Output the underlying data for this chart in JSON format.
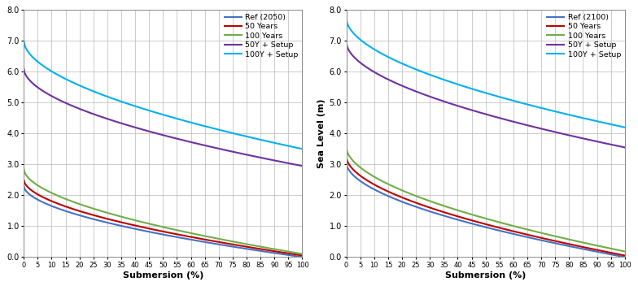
{
  "plots": [
    {
      "ylabel": "",
      "legend_ref_label": "Ref (2050)",
      "curves": {
        "ref": {
          "start": 2.3,
          "end": 0.0,
          "color": "#4472c4",
          "label": "Ref (2050)"
        },
        "50y": {
          "start": 2.5,
          "end": 0.05,
          "color": "#c00000",
          "label": "50 Years"
        },
        "100y": {
          "start": 2.85,
          "end": 0.1,
          "color": "#70ad47",
          "label": "100 Years"
        },
        "50yS": {
          "start": 6.1,
          "end": 2.95,
          "color": "#7030a0",
          "label": "50Y + Setup"
        },
        "100yS": {
          "start": 7.0,
          "end": 3.5,
          "color": "#00b0f0",
          "label": "100Y + Setup"
        }
      }
    },
    {
      "ylabel": "Sea Level (m)",
      "legend_ref_label": "Ref (2100)",
      "curves": {
        "ref": {
          "start": 3.05,
          "end": 0.0,
          "color": "#4472c4",
          "label": "Ref (2100)"
        },
        "50y": {
          "start": 3.25,
          "end": 0.05,
          "color": "#c00000",
          "label": "50 Years"
        },
        "100y": {
          "start": 3.55,
          "end": 0.18,
          "color": "#70ad47",
          "label": "100 Years"
        },
        "50yS": {
          "start": 6.95,
          "end": 3.55,
          "color": "#7030a0",
          "label": "50Y + Setup"
        },
        "100yS": {
          "start": 7.72,
          "end": 4.2,
          "color": "#00b0f0",
          "label": "100Y + Setup"
        }
      }
    }
  ],
  "xlim": [
    0,
    100
  ],
  "ylim": [
    0.0,
    8.0
  ],
  "xlabel": "Submersion (%)",
  "xticks": [
    0,
    5,
    10,
    15,
    20,
    25,
    30,
    35,
    40,
    45,
    50,
    55,
    60,
    65,
    70,
    75,
    80,
    85,
    90,
    95,
    100
  ],
  "yticks": [
    0.0,
    1.0,
    2.0,
    3.0,
    4.0,
    5.0,
    6.0,
    7.0,
    8.0
  ],
  "grid_color": "#b8b8b8",
  "background_color": "#ffffff",
  "curve_power": 0.55,
  "linewidth": 1.5
}
